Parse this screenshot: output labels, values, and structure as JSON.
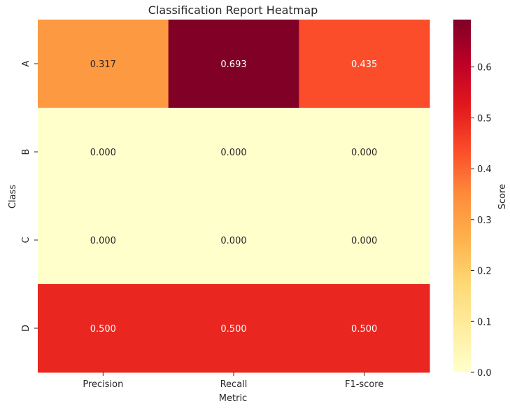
{
  "chart_data": {
    "type": "heatmap",
    "title": "Classification Report Heatmap",
    "xlabel": "Metric",
    "ylabel": "Class",
    "columns": [
      "Precision",
      "Recall",
      "F1-score"
    ],
    "rows": [
      "A",
      "B",
      "C",
      "D"
    ],
    "values": [
      [
        0.317,
        0.693,
        0.435
      ],
      [
        0.0,
        0.0,
        0.0
      ],
      [
        0.0,
        0.0,
        0.0
      ],
      [
        0.5,
        0.5,
        0.5
      ]
    ],
    "cell_labels": [
      [
        "0.317",
        "0.693",
        "0.435"
      ],
      [
        "0.000",
        "0.000",
        "0.000"
      ],
      [
        "0.000",
        "0.000",
        "0.000"
      ],
      [
        "0.500",
        "0.500",
        "0.500"
      ]
    ],
    "colorbar": {
      "label": "Score",
      "range": [
        0,
        0.693
      ],
      "ticks": [
        0.0,
        0.1,
        0.2,
        0.3,
        0.4,
        0.5,
        0.6
      ],
      "tick_labels": [
        "0.0",
        "0.1",
        "0.2",
        "0.3",
        "0.4",
        "0.5",
        "0.6"
      ],
      "colormap": "YlOrRd"
    }
  }
}
